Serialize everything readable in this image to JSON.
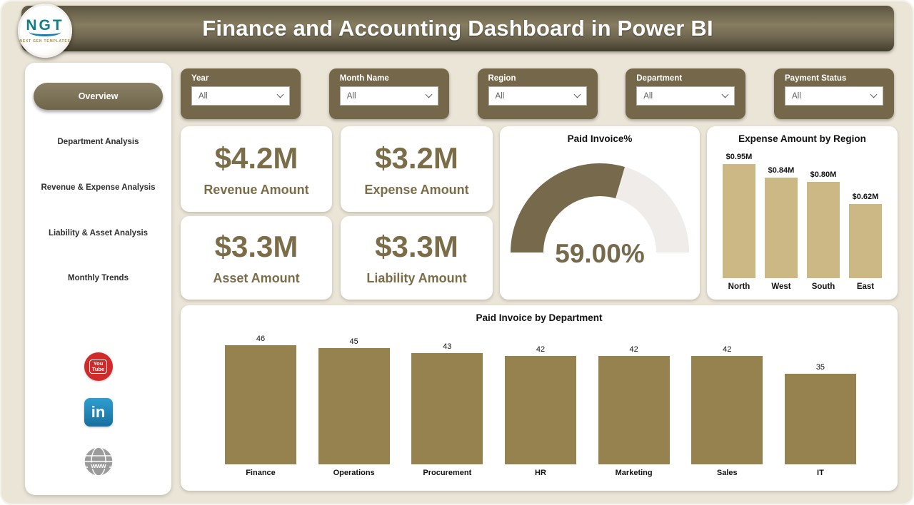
{
  "header": {
    "title": "Finance and Accounting Dashboard in Power BI",
    "logo": {
      "text": "NGT",
      "subtext": "NEXT GEN TEMPLATES"
    }
  },
  "sidebar": {
    "items": [
      {
        "label": "Overview",
        "active": true
      },
      {
        "label": "Department Analysis",
        "active": false
      },
      {
        "label": "Revenue & Expense Analysis",
        "active": false
      },
      {
        "label": "Liability & Asset Analysis",
        "active": false
      },
      {
        "label": "Monthly Trends",
        "active": false
      }
    ],
    "social": [
      {
        "name": "youtube",
        "line1": "You",
        "line2": "Tube",
        "color": "#cf2b2b"
      },
      {
        "name": "linkedin",
        "label": "in",
        "color": "#1d87bd"
      },
      {
        "name": "website",
        "label": "www",
        "color": "#9b9b9b"
      }
    ]
  },
  "filters": [
    {
      "label": "Year",
      "value": "All"
    },
    {
      "label": "Month Name",
      "value": "All"
    },
    {
      "label": "Region",
      "value": "All"
    },
    {
      "label": "Department",
      "value": "All"
    },
    {
      "label": "Payment Status",
      "value": "All"
    }
  ],
  "kpis": [
    {
      "value": "$4.2M",
      "label": "Revenue Amount"
    },
    {
      "value": "$3.2M",
      "label": "Expense Amount"
    },
    {
      "value": "$3.3M",
      "label": "Asset Amount"
    },
    {
      "value": "$3.3M",
      "label": "Liability Amount"
    }
  ],
  "chart_data": [
    {
      "type": "gauge",
      "title": "Paid Invoice%",
      "value": 59,
      "min": 0,
      "max": 100,
      "value_label": "59.00%",
      "fill_color": "#776a4c",
      "track_color": "#efecea"
    },
    {
      "type": "bar",
      "title": "Expense Amount by Region",
      "categories": [
        "North",
        "West",
        "South",
        "East"
      ],
      "values": [
        0.95,
        0.84,
        0.8,
        0.62
      ],
      "value_labels": [
        "$0.95M",
        "$0.84M",
        "$0.80M",
        "$0.62M"
      ],
      "bar_color": "#cbb885",
      "ylim": [
        0,
        0.95
      ]
    },
    {
      "type": "bar",
      "title": "Paid Invoice by Department",
      "categories": [
        "Finance",
        "Operations",
        "Procurement",
        "HR",
        "Marketing",
        "Sales",
        "IT"
      ],
      "values": [
        46,
        45,
        43,
        42,
        42,
        42,
        35
      ],
      "value_labels": [
        "46",
        "45",
        "43",
        "42",
        "42",
        "42",
        "35"
      ],
      "bar_color": "#95824f",
      "ylim": [
        0,
        46
      ]
    }
  ],
  "colors": {
    "background": "#ebe5d7",
    "header_brown": "#6e6650",
    "filter_brown": "#75684a",
    "kpi_text": "#7c6d49",
    "region_bar": "#cbb885",
    "dept_bar": "#95824f",
    "gauge_fill": "#776a4c",
    "youtube_red": "#cf2b2b",
    "linkedin_blue": "#1d87bd"
  }
}
